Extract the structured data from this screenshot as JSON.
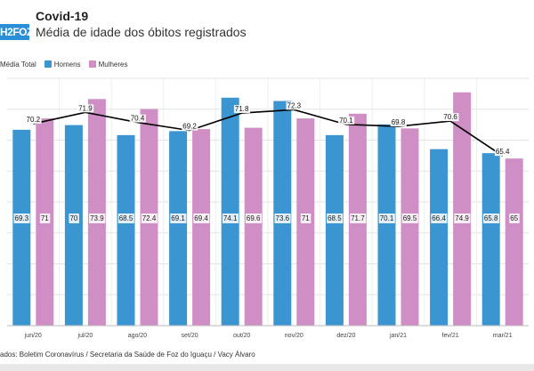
{
  "header": {
    "logo_text": "H2FOZ",
    "title": "Covid-19",
    "subtitle": "Média de idade dos óbitos registrados"
  },
  "legend": [
    {
      "label": "Média Total",
      "color": "#000000"
    },
    {
      "label": "Homens",
      "color": "#3a95d0"
    },
    {
      "label": "Mulheres",
      "color": "#cf8fc4"
    }
  ],
  "source": "ados: Boletim Coronavírus / Secretaria da Saúde de Foz do Iguaçu / Vacy Álvaro",
  "chart_data": {
    "type": "bar",
    "title": "Média de idade dos óbitos registrados",
    "categories": [
      "jun/20",
      "jul/20",
      "ago/20",
      "set/20",
      "out/20",
      "nov/20",
      "dez/20",
      "jan/21",
      "fev/21",
      "mar/21"
    ],
    "series": [
      {
        "name": "Homens",
        "type": "bar",
        "color": "#3a95d0",
        "values": [
          69.3,
          70,
          68.5,
          69.1,
          74.1,
          73.6,
          68.5,
          70.1,
          66.4,
          65.8
        ]
      },
      {
        "name": "Mulheres",
        "type": "bar",
        "color": "#cf8fc4",
        "values": [
          71,
          73.9,
          72.4,
          69.4,
          69.6,
          71,
          71.7,
          69.5,
          74.9,
          65
        ]
      },
      {
        "name": "Média Total",
        "type": "line",
        "color": "#000000",
        "values": [
          70.2,
          71.9,
          70.4,
          69.2,
          71.8,
          72.3,
          70.1,
          69.8,
          70.6,
          65.4
        ]
      }
    ],
    "ylim": [
      40,
      77
    ],
    "grid": true,
    "legend_position": "top-left"
  }
}
